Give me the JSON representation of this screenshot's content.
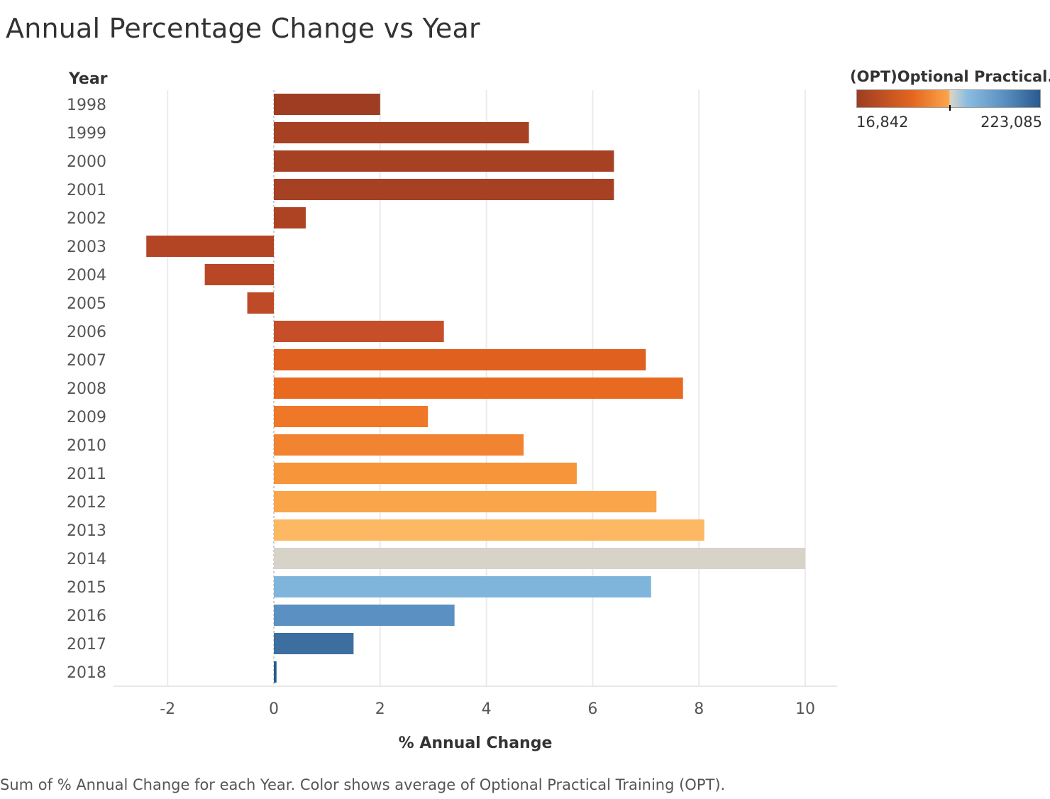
{
  "page": {
    "title": "Annual Percentage Change vs Year",
    "caption": "Sum of % Annual Change for each Year.  Color shows average of Optional Practical  Training (OPT)."
  },
  "legend": {
    "title": "(OPT)Optional Practical..",
    "min_label": "16,842",
    "max_label": "223,085",
    "colors": [
      "#9e3d22",
      "#e36621",
      "#fba54a",
      "#d9d5c9",
      "#8bbde0",
      "#2a5a8e"
    ]
  },
  "chart_data": {
    "type": "bar",
    "orientation": "horizontal",
    "title": "Annual Percentage Change vs Year",
    "ylabel": "Year",
    "xlabel": "% Annual Change",
    "xlim": [
      -3,
      10.6
    ],
    "xticks": [
      -2,
      0,
      2,
      4,
      6,
      8,
      10
    ],
    "grid": true,
    "categories": [
      "1998",
      "1999",
      "2000",
      "2001",
      "2002",
      "2003",
      "2004",
      "2005",
      "2006",
      "2007",
      "2008",
      "2009",
      "2010",
      "2011",
      "2012",
      "2013",
      "2014",
      "2015",
      "2016",
      "2017",
      "2018"
    ],
    "values": [
      2.0,
      4.8,
      6.4,
      6.4,
      0.6,
      -2.4,
      -1.3,
      -0.5,
      3.2,
      7.0,
      7.7,
      2.9,
      4.7,
      5.7,
      7.2,
      8.1,
      10.0,
      7.1,
      3.4,
      1.5,
      0.05
    ],
    "colors": [
      "#9e3d22",
      "#a64124",
      "#a64124",
      "#a64124",
      "#ae4324",
      "#b34525",
      "#b94726",
      "#be4a27",
      "#c64e28",
      "#e0601f",
      "#e86a21",
      "#ee7728",
      "#f28330",
      "#f7953a",
      "#faa54a",
      "#fcb863",
      "#d7d3c8",
      "#7fb5db",
      "#5b90c2",
      "#3d6ea0",
      "#2a5a8e"
    ]
  }
}
